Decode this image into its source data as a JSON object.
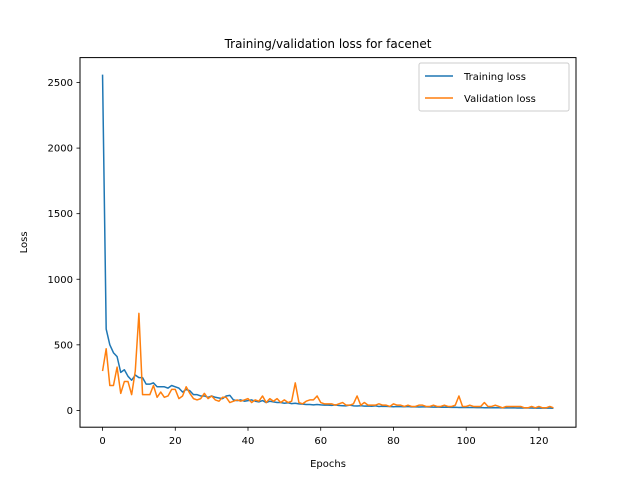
{
  "chart_data": {
    "type": "line",
    "title": "Training/validation loss for facenet",
    "xlabel": "Epochs",
    "ylabel": "Loss",
    "xlim": [
      -6.2,
      130.2
    ],
    "ylim": [
      -128,
      2690
    ],
    "xticks": [
      0,
      20,
      40,
      60,
      80,
      100,
      120
    ],
    "yticks": [
      0,
      500,
      1000,
      1500,
      2000,
      2500
    ],
    "grid": false,
    "legend_position": "top-right",
    "series": [
      {
        "name": "Training loss",
        "color": "#1f77b4",
        "x": [
          0,
          1,
          2,
          3,
          4,
          5,
          6,
          7,
          8,
          9,
          10,
          11,
          12,
          13,
          14,
          15,
          16,
          17,
          18,
          19,
          20,
          21,
          22,
          23,
          24,
          25,
          26,
          27,
          28,
          29,
          30,
          31,
          32,
          33,
          34,
          35,
          36,
          37,
          38,
          39,
          40,
          41,
          42,
          43,
          44,
          45,
          46,
          47,
          48,
          49,
          50,
          51,
          52,
          53,
          54,
          55,
          56,
          57,
          58,
          59,
          60,
          61,
          62,
          63,
          64,
          65,
          66,
          67,
          68,
          69,
          70,
          71,
          72,
          73,
          74,
          75,
          76,
          77,
          78,
          79,
          80,
          81,
          82,
          83,
          84,
          85,
          86,
          87,
          88,
          89,
          90,
          91,
          92,
          93,
          94,
          95,
          96,
          97,
          98,
          99,
          100,
          101,
          102,
          103,
          104,
          105,
          106,
          107,
          108,
          109,
          110,
          111,
          112,
          113,
          114,
          115,
          116,
          117,
          118,
          119,
          120,
          121,
          122,
          123,
          124
        ],
        "values": [
          2560,
          620,
          500,
          440,
          410,
          290,
          310,
          260,
          230,
          270,
          250,
          250,
          200,
          200,
          210,
          180,
          180,
          180,
          170,
          190,
          180,
          170,
          140,
          160,
          150,
          120,
          120,
          110,
          110,
          100,
          110,
          100,
          95,
          90,
          110,
          115,
          80,
          75,
          80,
          70,
          75,
          80,
          70,
          65,
          75,
          60,
          70,
          65,
          60,
          60,
          55,
          58,
          52,
          55,
          50,
          48,
          45,
          45,
          42,
          45,
          42,
          40,
          40,
          38,
          42,
          37,
          36,
          35,
          40,
          35,
          34,
          36,
          33,
          34,
          32,
          35,
          30,
          32,
          31,
          30,
          28,
          30,
          29,
          28,
          30,
          27,
          28,
          26,
          27,
          27,
          26,
          25,
          26,
          24,
          25,
          24,
          23,
          24,
          22,
          23,
          22,
          22,
          22,
          21,
          22,
          20,
          21,
          20,
          21,
          20,
          19,
          20,
          19,
          20,
          18,
          19,
          18,
          19,
          18,
          17,
          18,
          17,
          18,
          17,
          16
        ]
      },
      {
        "name": "Validation loss",
        "color": "#ff7f0e",
        "x": [
          0,
          1,
          2,
          3,
          4,
          5,
          6,
          7,
          8,
          9,
          10,
          11,
          12,
          13,
          14,
          15,
          16,
          17,
          18,
          19,
          20,
          21,
          22,
          23,
          24,
          25,
          26,
          27,
          28,
          29,
          30,
          31,
          32,
          33,
          34,
          35,
          36,
          37,
          38,
          39,
          40,
          41,
          42,
          43,
          44,
          45,
          46,
          47,
          48,
          49,
          50,
          51,
          52,
          53,
          54,
          55,
          56,
          57,
          58,
          59,
          60,
          61,
          62,
          63,
          64,
          65,
          66,
          67,
          68,
          69,
          70,
          71,
          72,
          73,
          74,
          75,
          76,
          77,
          78,
          79,
          80,
          81,
          82,
          83,
          84,
          85,
          86,
          87,
          88,
          89,
          90,
          91,
          92,
          93,
          94,
          95,
          96,
          97,
          98,
          99,
          100,
          101,
          102,
          103,
          104,
          105,
          106,
          107,
          108,
          109,
          110,
          111,
          112,
          113,
          114,
          115,
          116,
          117,
          118,
          119,
          120,
          121,
          122,
          123,
          124
        ],
        "values": [
          300,
          470,
          190,
          190,
          330,
          130,
          220,
          220,
          120,
          300,
          740,
          120,
          120,
          120,
          190,
          100,
          140,
          100,
          110,
          160,
          160,
          90,
          110,
          180,
          130,
          90,
          80,
          90,
          130,
          90,
          110,
          80,
          70,
          100,
          100,
          60,
          70,
          80,
          70,
          80,
          90,
          60,
          80,
          70,
          110,
          60,
          90,
          70,
          90,
          60,
          80,
          60,
          70,
          210,
          60,
          50,
          70,
          80,
          80,
          110,
          60,
          50,
          50,
          50,
          40,
          50,
          60,
          40,
          40,
          50,
          110,
          40,
          60,
          40,
          40,
          40,
          50,
          40,
          40,
          30,
          50,
          40,
          40,
          30,
          40,
          30,
          30,
          40,
          40,
          30,
          30,
          40,
          30,
          30,
          40,
          30,
          30,
          40,
          110,
          30,
          30,
          40,
          30,
          30,
          30,
          60,
          30,
          30,
          40,
          30,
          20,
          30,
          30,
          30,
          30,
          30,
          20,
          20,
          30,
          20,
          30,
          20,
          20,
          30,
          20
        ]
      }
    ]
  }
}
